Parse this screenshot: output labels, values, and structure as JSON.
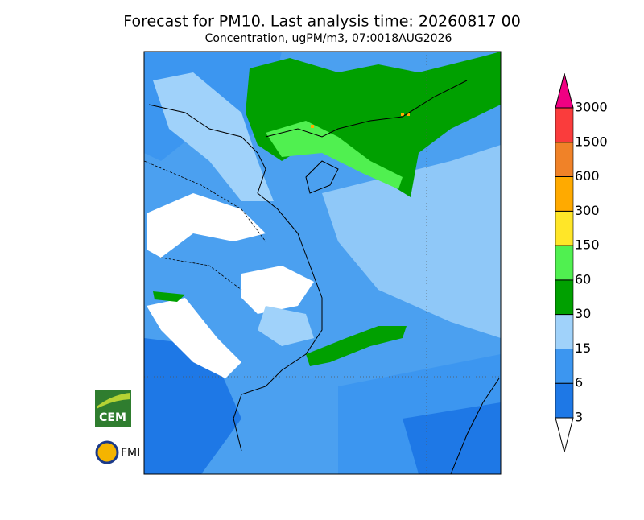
{
  "header": {
    "title": "Forecast for PM10. Last analysis time: 20260817 00",
    "subtitle": "Concentration, ugPM/m3, 07:0018AUG2026"
  },
  "legend": {
    "levels": [
      3,
      6,
      15,
      30,
      60,
      150,
      300,
      600,
      1500,
      3000
    ],
    "colors": [
      "#ffffff",
      "#1e78e6",
      "#3c96f0",
      "#a0d2fa",
      "#00a000",
      "#50f050",
      "#ffe628",
      "#ffaa00",
      "#f08228",
      "#fa3c3c",
      "#f00082"
    ]
  },
  "logos": [
    "CEM",
    "FMI"
  ]
}
